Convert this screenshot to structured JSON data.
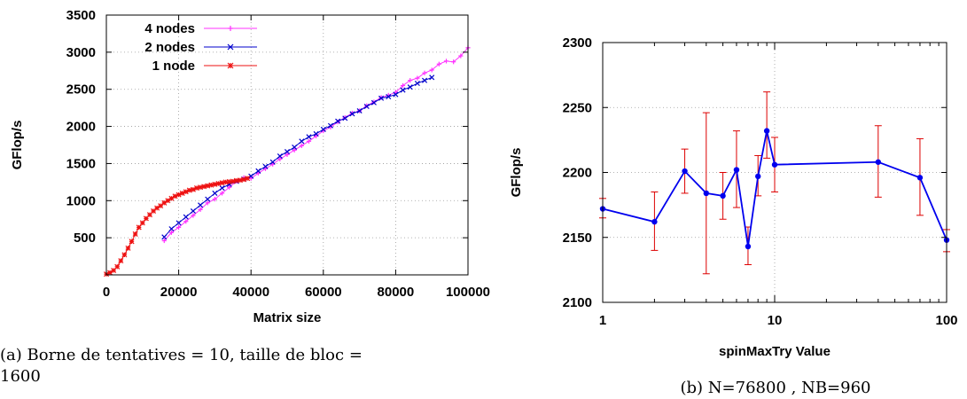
{
  "chart_data": [
    {
      "type": "line",
      "panel": "a",
      "caption_lines": [
        "(a) Borne de tentatives = 10, taille de bloc =",
        "1600"
      ],
      "xlabel": "Matrix size",
      "ylabel": "GFlop/s",
      "xlim": [
        0,
        100000
      ],
      "ylim": [
        0,
        3500
      ],
      "xticks": [
        0,
        20000,
        40000,
        60000,
        80000,
        100000
      ],
      "xtick_labels": [
        "0",
        "20000",
        "40000",
        "60000",
        "80000",
        "100000"
      ],
      "yticks": [
        500,
        1000,
        1500,
        2000,
        2500,
        3000,
        3500
      ],
      "ytick_labels": [
        "500",
        "1000",
        "1500",
        "2000",
        "2500",
        "3000",
        "3500"
      ],
      "grid": true,
      "legend_position": "top-left",
      "series": [
        {
          "name": "4 nodes",
          "color": "#ff33ff",
          "marker": "plus",
          "x": [
            16000,
            18000,
            20000,
            22000,
            24000,
            26000,
            28000,
            30000,
            32000,
            34000,
            36000,
            38000,
            40000,
            42000,
            44000,
            46000,
            48000,
            50000,
            52000,
            54000,
            56000,
            58000,
            60000,
            62000,
            64000,
            66000,
            68000,
            70000,
            72000,
            74000,
            76000,
            78000,
            80000,
            82000,
            84000,
            86000,
            88000,
            90000,
            92000,
            94000,
            96000,
            98000,
            100000
          ],
          "values": [
            460,
            570,
            640,
            720,
            800,
            880,
            970,
            1020,
            1100,
            1180,
            1260,
            1310,
            1300,
            1370,
            1430,
            1490,
            1560,
            1620,
            1680,
            1740,
            1800,
            1870,
            1940,
            1990,
            2060,
            2120,
            2180,
            2210,
            2280,
            2330,
            2390,
            2420,
            2460,
            2550,
            2620,
            2650,
            2720,
            2760,
            2840,
            2880,
            2870,
            2950,
            3060
          ]
        },
        {
          "name": "2 nodes",
          "color": "#0000cc",
          "marker": "x",
          "x": [
            16000,
            18000,
            20000,
            22000,
            24000,
            26000,
            28000,
            30000,
            32000,
            34000,
            36000,
            38000,
            40000,
            42000,
            44000,
            46000,
            48000,
            50000,
            52000,
            54000,
            56000,
            58000,
            60000,
            62000,
            64000,
            66000,
            68000,
            70000,
            72000,
            74000,
            76000,
            78000,
            80000,
            82000,
            84000,
            86000,
            88000,
            90000
          ],
          "values": [
            510,
            620,
            700,
            780,
            860,
            940,
            1020,
            1100,
            1170,
            1220,
            1260,
            1290,
            1330,
            1400,
            1460,
            1520,
            1600,
            1660,
            1720,
            1800,
            1860,
            1900,
            1960,
            2010,
            2070,
            2110,
            2170,
            2210,
            2270,
            2320,
            2380,
            2400,
            2430,
            2490,
            2530,
            2580,
            2620,
            2660
          ]
        },
        {
          "name": "1 node",
          "color": "#ee1111",
          "marker": "star",
          "x": [
            0,
            1000,
            2000,
            3000,
            4000,
            5000,
            6000,
            7000,
            8000,
            9000,
            10000,
            11000,
            12000,
            13000,
            14000,
            15000,
            16000,
            17000,
            18000,
            19000,
            20000,
            21000,
            22000,
            23000,
            24000,
            25000,
            26000,
            27000,
            28000,
            29000,
            30000,
            31000,
            32000,
            33000,
            34000,
            35000,
            36000,
            37000,
            38000,
            39000
          ],
          "values": [
            10,
            30,
            60,
            110,
            190,
            270,
            360,
            450,
            550,
            640,
            700,
            760,
            810,
            860,
            900,
            930,
            970,
            1000,
            1030,
            1060,
            1080,
            1100,
            1120,
            1140,
            1150,
            1170,
            1180,
            1190,
            1200,
            1210,
            1220,
            1230,
            1240,
            1250,
            1255,
            1260,
            1270,
            1275,
            1285,
            1300
          ]
        }
      ]
    },
    {
      "type": "line",
      "panel": "b",
      "caption": "(b) N=76800 , NB=960",
      "xlabel": "spinMaxTry Value",
      "ylabel": "GFlop/s",
      "xscale": "log",
      "xlim": [
        1,
        100
      ],
      "ylim": [
        2100,
        2300
      ],
      "xticks": [
        1,
        10,
        100
      ],
      "xtick_labels": [
        "1",
        "10",
        "100"
      ],
      "yticks": [
        2100,
        2150,
        2200,
        2250,
        2300
      ],
      "ytick_labels": [
        "2100",
        "2150",
        "2200",
        "2250",
        "2300"
      ],
      "grid": true,
      "line_color": "#0000ee",
      "error_bar_color": "#dd0000",
      "x": [
        1,
        2,
        3,
        4,
        5,
        6,
        7,
        8,
        9,
        10,
        40,
        70,
        100
      ],
      "values": [
        2172,
        2162,
        2201,
        2184,
        2182,
        2202,
        2143,
        2197,
        2232,
        2206,
        2208,
        2196,
        2148
      ],
      "error_low": [
        2165,
        2140,
        2184,
        2122,
        2164,
        2173,
        2129,
        2182,
        2211,
        2185,
        2181,
        2167,
        2139
      ],
      "error_high": [
        2180,
        2185,
        2218,
        2246,
        2200,
        2232,
        2158,
        2213,
        2262,
        2227,
        2236,
        2226,
        2156
      ]
    }
  ]
}
